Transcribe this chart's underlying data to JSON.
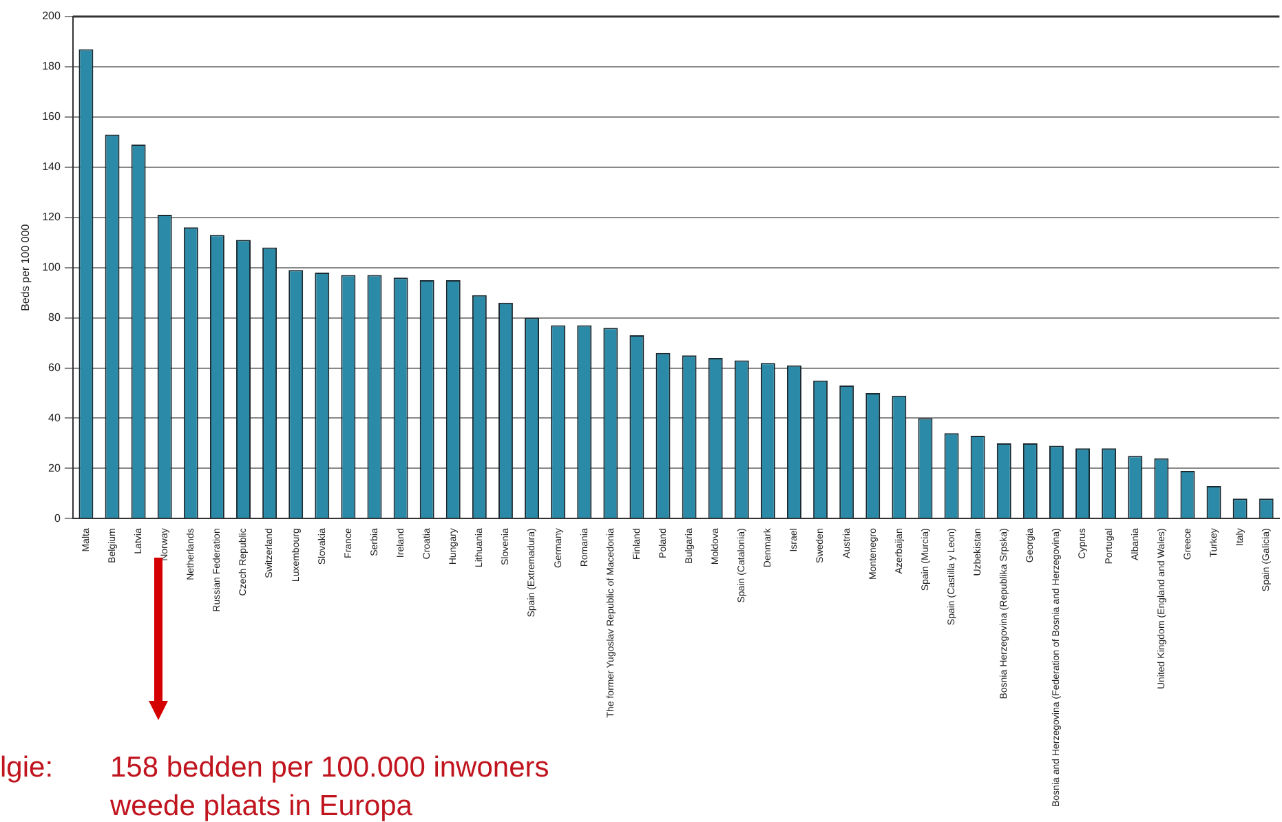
{
  "chart_data": {
    "type": "bar",
    "ylabel": "Beds per 100 000",
    "categories": [
      "Malta",
      "Belgium",
      "Latvia",
      "Norway",
      "Netherlands",
      "Russian Federation",
      "Czech Republic",
      "Switzerland",
      "Luxembourg",
      "Slovakia",
      "France",
      "Serbia",
      "Ireland",
      "Croatia",
      "Hungary",
      "Lithuania",
      "Slovenia",
      "Spain (Extremadura)",
      "Germany",
      "Romania",
      "The former Yugoslav Republic of Macedonia",
      "Finland",
      "Poland",
      "Bulgaria",
      "Moldova",
      "Spain (Catalonia)",
      "Denmark",
      "Israel",
      "Sweden",
      "Austria",
      "Montenegro",
      "Azerbaijan",
      "Spain (Murcia)",
      "Spain (Castilla y Leon)",
      "Uzbekistan",
      "Bosnia Herzegovina (Republika Srpska)",
      "Georgia",
      "Bosnia and Herzegovina (Federation of Bosnia and Herzegovina)",
      "Cyprus",
      "Portugal",
      "Albania",
      "United Kingdom (England and Wales)",
      "Greece",
      "Turkey",
      "Italy",
      "Spain (Galicia)"
    ],
    "values": [
      187,
      153,
      149,
      121,
      116,
      113,
      111,
      108,
      99,
      98,
      97,
      97,
      96,
      95,
      95,
      89,
      86,
      80,
      77,
      77,
      76,
      73,
      66,
      65,
      64,
      63,
      62,
      61,
      55,
      53,
      50,
      49,
      40,
      34,
      33,
      30,
      30,
      29,
      28,
      28,
      25,
      24,
      19,
      13,
      8,
      8
    ],
    "color": "#2a8aa8",
    "ylim": [
      0,
      200
    ],
    "yticks": [
      0,
      20,
      40,
      60,
      80,
      100,
      120,
      140,
      160,
      180,
      200
    ],
    "grid": "y",
    "annotations": [
      "lgie:",
      "158 bedden per 100.000 inwoners",
      "weede plaats in Europa"
    ]
  }
}
